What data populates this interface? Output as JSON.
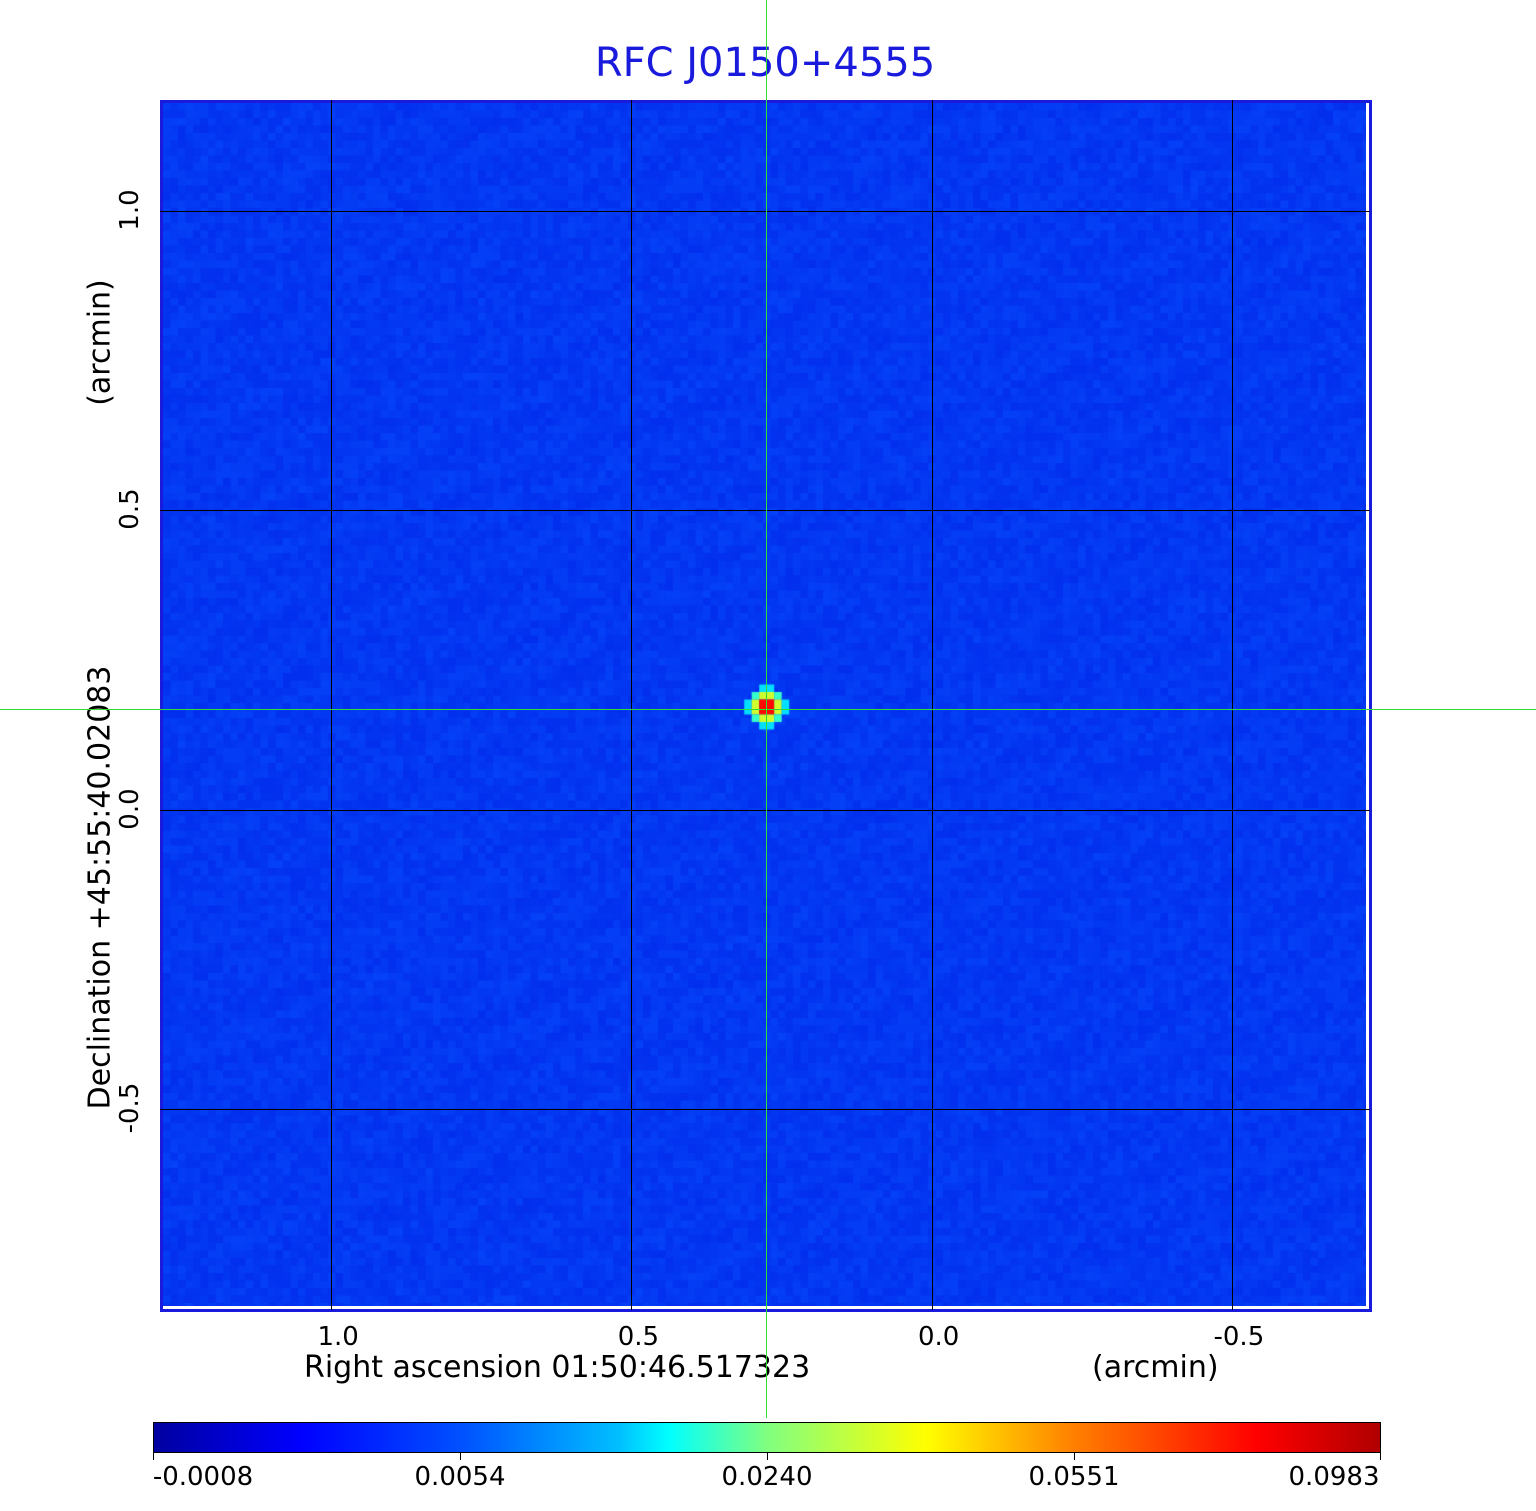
{
  "chart_data": {
    "type": "heatmap",
    "title": "RFC J0150+4555",
    "xlabel": "Right ascension  01:50:46.517323",
    "xunit": "(arcmin)",
    "ylabel": "Declination  +45:55:40.02083",
    "yunit": "(arcmin)",
    "xlim": [
      1.285,
      -0.73
    ],
    "ylim": [
      -0.835,
      1.185
    ],
    "xticks": [
      "1.0",
      "0.5",
      "0.0",
      "-0.5"
    ],
    "xtick_values": [
      1.0,
      0.5,
      0.0,
      -0.5
    ],
    "yticks": [
      "1.0",
      "0.5",
      "0.0",
      "-0.5"
    ],
    "ytick_values": [
      1.0,
      0.5,
      0.0,
      -0.5
    ],
    "grid": true,
    "source": {
      "x": 0.273,
      "y": 0.17,
      "peak": 0.0983
    },
    "crosshair": {
      "x": 0.273,
      "y": 0.17
    },
    "colormap": "jet",
    "colorbar": {
      "labels": [
        "-0.0008",
        "0.0054",
        "0.0240",
        "0.0551",
        "0.0983"
      ],
      "min": -0.0008,
      "max": 0.0983
    },
    "colors": {
      "title": "#1a1adc",
      "frame": "#1a1adc",
      "crosshair": "#33dd33",
      "background_noise": "#0a2cf0"
    }
  }
}
